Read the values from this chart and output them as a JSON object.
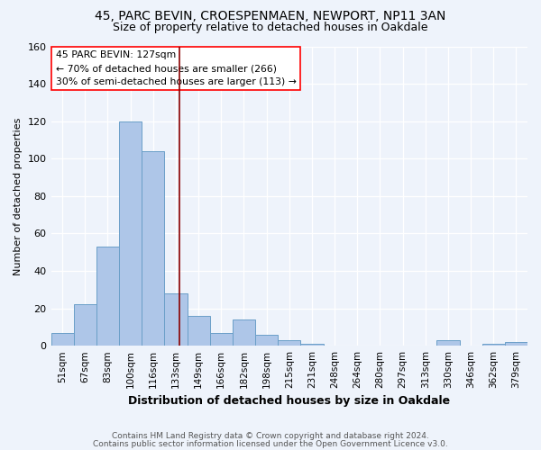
{
  "title_line1": "45, PARC BEVIN, CROESPENMAEN, NEWPORT, NP11 3AN",
  "title_line2": "Size of property relative to detached houses in Oakdale",
  "xlabel": "Distribution of detached houses by size in Oakdale",
  "ylabel": "Number of detached properties",
  "categories": [
    "51sqm",
    "67sqm",
    "83sqm",
    "100sqm",
    "116sqm",
    "133sqm",
    "149sqm",
    "166sqm",
    "182sqm",
    "198sqm",
    "215sqm",
    "231sqm",
    "248sqm",
    "264sqm",
    "280sqm",
    "297sqm",
    "313sqm",
    "330sqm",
    "346sqm",
    "362sqm",
    "379sqm"
  ],
  "values": [
    7,
    22,
    53,
    120,
    104,
    28,
    16,
    7,
    14,
    6,
    3,
    1,
    0,
    0,
    0,
    0,
    0,
    3,
    0,
    1,
    2
  ],
  "bar_color": "#aec6e8",
  "bar_edge_color": "#6a9fc8",
  "vline_x": 5.18,
  "vline_color": "#8b0000",
  "annotation_text": "45 PARC BEVIN: 127sqm\n← 70% of detached houses are smaller (266)\n30% of semi-detached houses are larger (113) →",
  "annotation_box_color": "white",
  "annotation_box_edge": "red",
  "ylim": [
    0,
    160
  ],
  "yticks": [
    0,
    20,
    40,
    60,
    80,
    100,
    120,
    140,
    160
  ],
  "footer_line1": "Contains HM Land Registry data © Crown copyright and database right 2024.",
  "footer_line2": "Contains public sector information licensed under the Open Government Licence v3.0.",
  "bg_color": "#eef3fb",
  "plot_bg_color": "#eef3fb"
}
